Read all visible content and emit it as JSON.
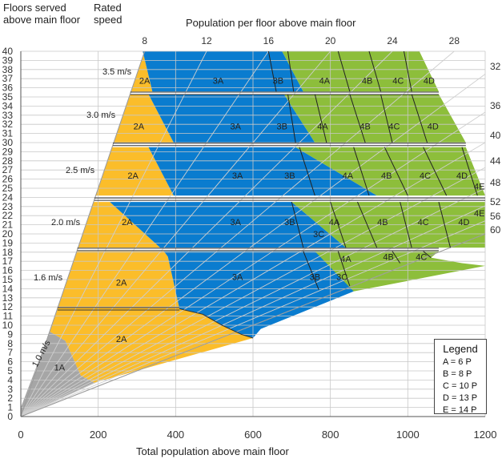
{
  "chart_data": {
    "type": "area",
    "title": "",
    "y_label_line1": "Floors served",
    "y_label_line2": "above main floor",
    "speed_label_line1": "Rated",
    "speed_label_line2": "speed",
    "top_axis_label": "Population per floor above main floor",
    "xlabel": "Total population above main floor",
    "xlim": [
      0,
      1200
    ],
    "ylim": [
      0,
      40
    ],
    "x_ticks": [
      0,
      200,
      400,
      600,
      800,
      1000,
      1200
    ],
    "y_ticks": [
      0,
      1,
      2,
      3,
      4,
      5,
      6,
      7,
      8,
      9,
      10,
      11,
      12,
      13,
      14,
      15,
      16,
      17,
      18,
      19,
      20,
      21,
      22,
      23,
      24,
      25,
      26,
      27,
      28,
      29,
      30,
      31,
      32,
      33,
      34,
      35,
      36,
      37,
      38,
      39,
      40
    ],
    "density_lines_top": [
      8,
      12,
      16,
      20,
      24,
      28
    ],
    "density_lines_right": [
      32,
      36,
      40,
      44,
      48,
      52,
      56,
      60
    ],
    "speed_labels": [
      "1.0 m/s",
      "1.6  m/s",
      "2.0 m/s",
      "2.5 m/s",
      "3.0 m/s",
      "3.5 m/s"
    ],
    "region_labels": [
      {
        "text": "1A",
        "x": 100,
        "y": 5.4
      },
      {
        "text": "2A",
        "x": 260,
        "y": 8.5
      },
      {
        "text": "2A",
        "x": 260,
        "y": 14.7
      },
      {
        "text": "3A",
        "x": 560,
        "y": 15.3
      },
      {
        "text": "3B",
        "x": 760,
        "y": 15.3
      },
      {
        "text": "3C",
        "x": 830,
        "y": 15.3
      },
      {
        "text": "4A",
        "x": 840,
        "y": 17.3
      },
      {
        "text": "4B",
        "x": 950,
        "y": 17.5
      },
      {
        "text": "4C",
        "x": 1035,
        "y": 17.5
      },
      {
        "text": "2A",
        "x": 275,
        "y": 21.3
      },
      {
        "text": "3A",
        "x": 555,
        "y": 21.3
      },
      {
        "text": "3B",
        "x": 695,
        "y": 21.3
      },
      {
        "text": "3C",
        "x": 770,
        "y": 20.0
      },
      {
        "text": "4A",
        "x": 810,
        "y": 21.3
      },
      {
        "text": "4B",
        "x": 935,
        "y": 21.3
      },
      {
        "text": "4C",
        "x": 1040,
        "y": 21.3
      },
      {
        "text": "4D",
        "x": 1145,
        "y": 21.3
      },
      {
        "text": "4E",
        "x": 1185,
        "y": 22.3
      },
      {
        "text": "2A",
        "x": 290,
        "y": 26.4
      },
      {
        "text": "3A",
        "x": 560,
        "y": 26.4
      },
      {
        "text": "3B",
        "x": 695,
        "y": 26.4
      },
      {
        "text": "4A",
        "x": 845,
        "y": 26.4
      },
      {
        "text": "4B",
        "x": 945,
        "y": 26.4
      },
      {
        "text": "4C",
        "x": 1045,
        "y": 26.4
      },
      {
        "text": "4D",
        "x": 1140,
        "y": 26.4
      },
      {
        "text": "4E",
        "x": 1185,
        "y": 25.2
      },
      {
        "text": "2A",
        "x": 305,
        "y": 31.8
      },
      {
        "text": "3A",
        "x": 555,
        "y": 31.8
      },
      {
        "text": "3B",
        "x": 675,
        "y": 31.8
      },
      {
        "text": "4A",
        "x": 780,
        "y": 31.8
      },
      {
        "text": "4B",
        "x": 890,
        "y": 31.8
      },
      {
        "text": "4C",
        "x": 965,
        "y": 31.8
      },
      {
        "text": "4D",
        "x": 1065,
        "y": 31.8
      },
      {
        "text": "2A",
        "x": 320,
        "y": 36.8
      },
      {
        "text": "3A",
        "x": 510,
        "y": 36.8
      },
      {
        "text": "3B",
        "x": 665,
        "y": 36.8
      },
      {
        "text": "4A",
        "x": 785,
        "y": 36.8
      },
      {
        "text": "4B",
        "x": 895,
        "y": 36.8
      },
      {
        "text": "4C",
        "x": 975,
        "y": 36.8
      },
      {
        "text": "4D",
        "x": 1055,
        "y": 36.8
      }
    ],
    "legend_title": "Legend",
    "legend_items": [
      "A = 6 P",
      "B = 8 P",
      "C = 10 P",
      "D = 13 P",
      "E = 14 P"
    ],
    "colors": {
      "grey": "#a6a6a6",
      "A": "#fbbd2a",
      "B": "#0a7ccf",
      "CDE": "#8dbe3b",
      "grid": "#c8c8c8",
      "line": "#111111"
    }
  }
}
